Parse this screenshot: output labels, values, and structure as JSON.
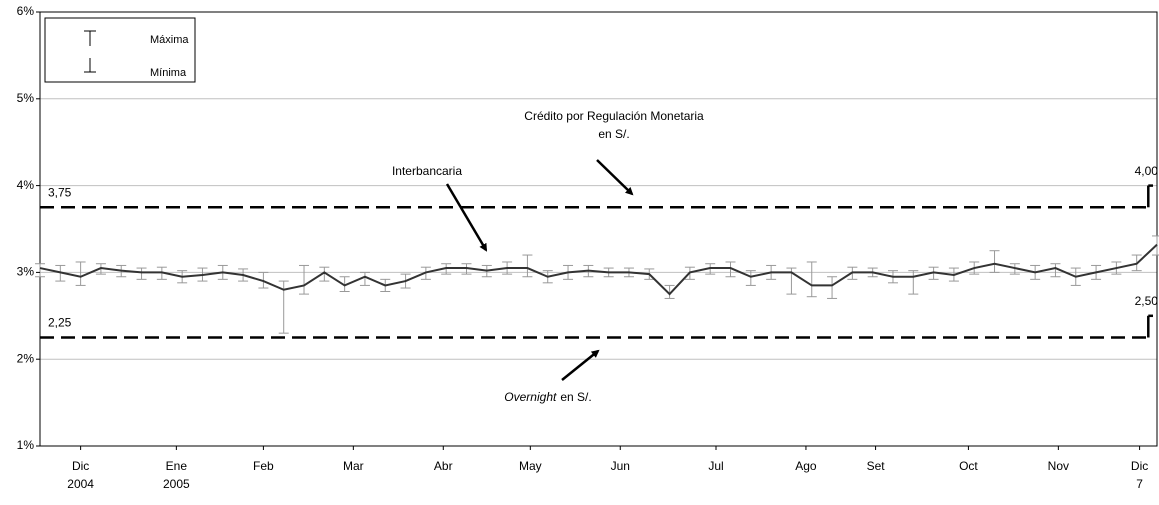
{
  "chart_data": {
    "type": "line",
    "ylim": [
      1,
      6
    ],
    "yticks": [
      {
        "value": 1,
        "label": "1%"
      },
      {
        "value": 2,
        "label": "2%"
      },
      {
        "value": 3,
        "label": "3%"
      },
      {
        "value": 4,
        "label": "4%"
      },
      {
        "value": 5,
        "label": "5%"
      },
      {
        "value": 6,
        "label": "6%"
      }
    ],
    "grid": true,
    "xlim": [
      0,
      385
    ],
    "xticks": [
      {
        "value": 14,
        "label": "Dic",
        "sublabel": "2004"
      },
      {
        "value": 47,
        "label": "Ene",
        "sublabel": "2005"
      },
      {
        "value": 77,
        "label": "Feb"
      },
      {
        "value": 108,
        "label": "Mar"
      },
      {
        "value": 139,
        "label": "Abr"
      },
      {
        "value": 169,
        "label": "May"
      },
      {
        "value": 200,
        "label": "Jun"
      },
      {
        "value": 233,
        "label": "Jul"
      },
      {
        "value": 264,
        "label": "Ago"
      },
      {
        "value": 288,
        "label": "Set"
      },
      {
        "value": 320,
        "label": "Oct"
      },
      {
        "value": 351,
        "label": "Nov"
      },
      {
        "value": 379,
        "label": "Dic",
        "sublabel": "7"
      }
    ],
    "x": [
      0,
      7,
      14,
      21,
      28,
      35,
      42,
      49,
      56,
      63,
      70,
      77,
      84,
      91,
      98,
      105,
      112,
      119,
      126,
      133,
      140,
      147,
      154,
      161,
      168,
      175,
      182,
      189,
      196,
      203,
      210,
      217,
      224,
      231,
      238,
      245,
      252,
      259,
      266,
      273,
      280,
      287,
      294,
      301,
      308,
      315,
      322,
      329,
      336,
      343,
      350,
      357,
      364,
      371,
      378,
      385
    ],
    "series": [
      {
        "color": "#333333",
        "errorbar_color": "#999999",
        "values": [
          3.05,
          3.0,
          2.95,
          3.05,
          3.02,
          3.0,
          3.0,
          2.95,
          2.97,
          3.0,
          2.97,
          2.9,
          2.8,
          2.85,
          3.0,
          2.85,
          2.95,
          2.85,
          2.9,
          3.0,
          3.05,
          3.05,
          3.02,
          3.05,
          3.05,
          2.95,
          3.0,
          3.02,
          3.0,
          3.0,
          2.98,
          2.75,
          3.0,
          3.05,
          3.05,
          2.95,
          3.0,
          3.0,
          2.85,
          2.85,
          3.0,
          3.0,
          2.95,
          2.95,
          3.0,
          2.97,
          3.05,
          3.1,
          3.05,
          3.0,
          3.05,
          2.95,
          3.0,
          3.05,
          3.1,
          3.32
        ],
        "max": [
          3.1,
          3.08,
          3.12,
          3.1,
          3.08,
          3.05,
          3.06,
          3.02,
          3.05,
          3.08,
          3.04,
          3.0,
          2.9,
          3.08,
          3.06,
          2.95,
          3.0,
          2.92,
          2.98,
          3.06,
          3.1,
          3.1,
          3.08,
          3.12,
          3.2,
          3.02,
          3.08,
          3.08,
          3.05,
          3.05,
          3.04,
          2.85,
          3.06,
          3.1,
          3.12,
          3.02,
          3.08,
          3.05,
          3.12,
          2.95,
          3.06,
          3.05,
          3.02,
          3.02,
          3.06,
          3.05,
          3.12,
          3.25,
          3.1,
          3.08,
          3.1,
          3.05,
          3.08,
          3.12,
          3.2,
          3.42
        ],
        "min": [
          2.95,
          2.9,
          2.85,
          2.98,
          2.95,
          2.92,
          2.92,
          2.88,
          2.9,
          2.92,
          2.9,
          2.82,
          2.3,
          2.75,
          2.9,
          2.78,
          2.85,
          2.78,
          2.82,
          2.92,
          2.98,
          2.98,
          2.95,
          2.98,
          2.95,
          2.88,
          2.92,
          2.95,
          2.95,
          2.95,
          2.92,
          2.7,
          2.92,
          2.98,
          2.95,
          2.85,
          2.92,
          2.75,
          2.72,
          2.7,
          2.92,
          2.95,
          2.88,
          2.75,
          2.92,
          2.9,
          2.98,
          3.0,
          2.98,
          2.92,
          2.95,
          2.85,
          2.92,
          2.98,
          3.02,
          3.2
        ]
      }
    ],
    "reference_lines": [
      {
        "x": [
          0,
          382
        ],
        "values": [
          3.75,
          4.0
        ],
        "value_labels": [
          "3,75",
          "4,00"
        ]
      },
      {
        "x": [
          0,
          382
        ],
        "values": [
          2.25,
          2.5
        ],
        "value_labels": [
          "2,25",
          "2,50"
        ]
      }
    ],
    "legend": {
      "max": "Máxima",
      "min": "Mínima"
    },
    "annotations": {
      "crm": [
        "Crédito por Regulación Monetaria",
        "en S/."
      ],
      "interbank": "Interbancaria",
      "overnight": [
        "Overnight",
        "en S/."
      ]
    }
  }
}
